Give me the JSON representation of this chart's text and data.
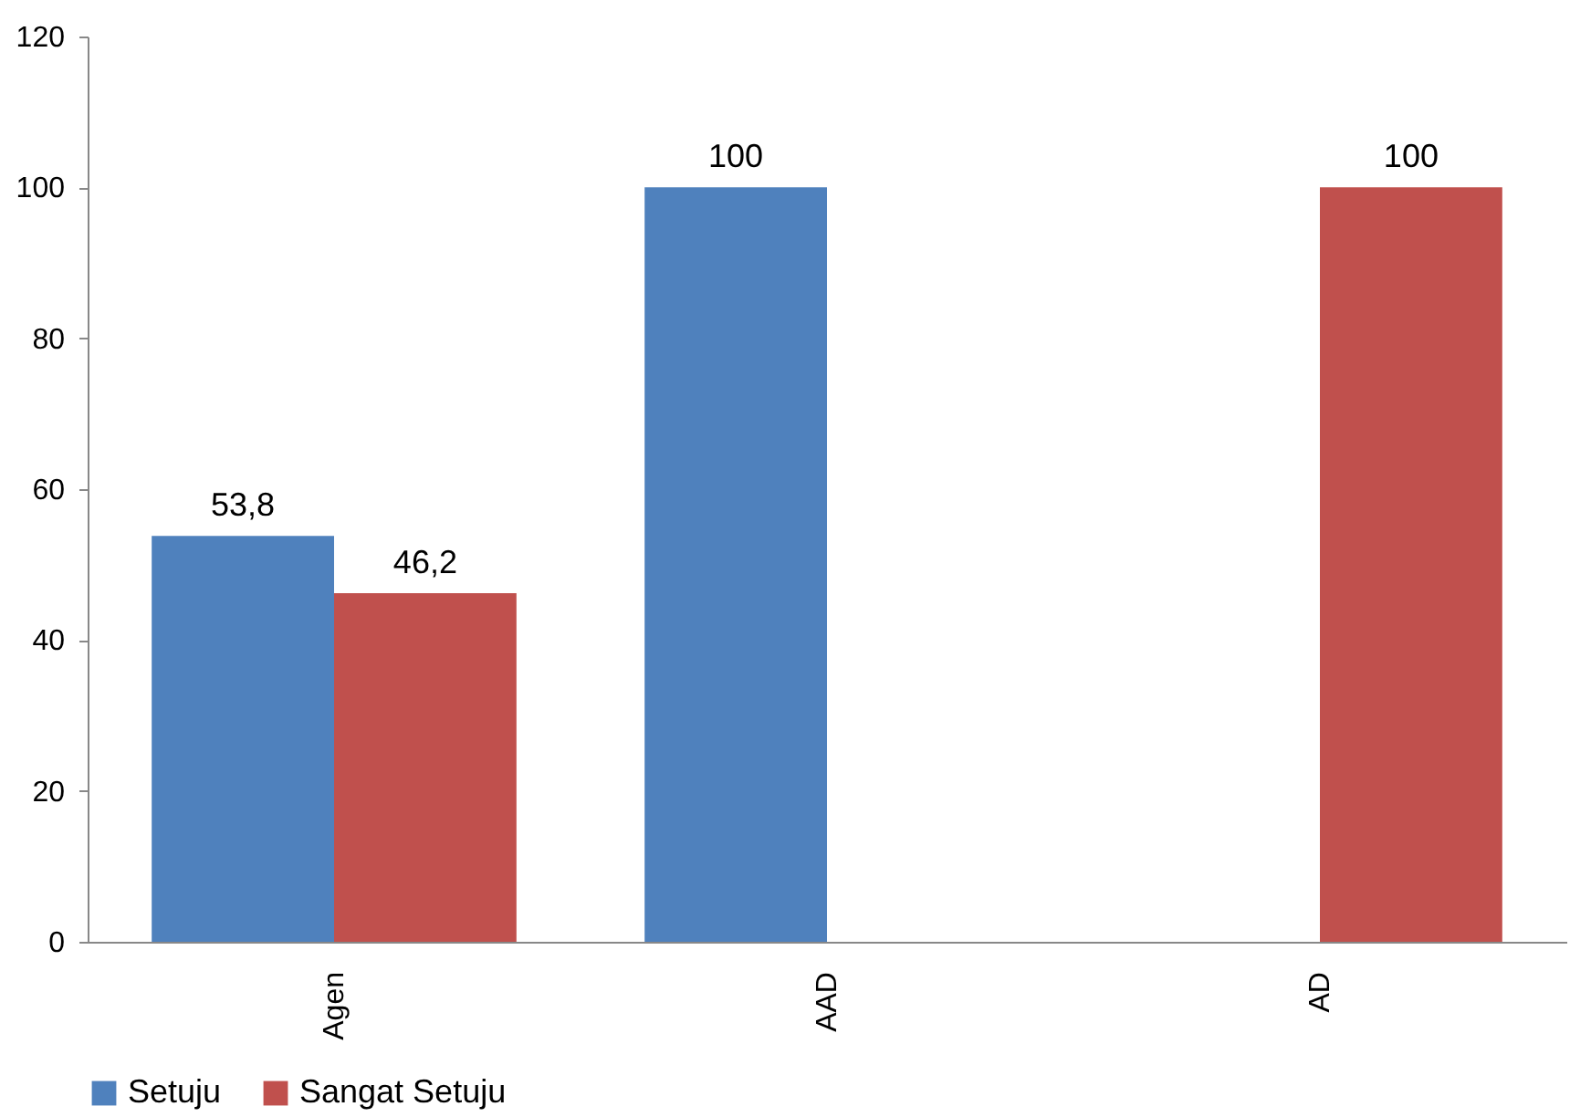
{
  "chart_data": {
    "type": "bar",
    "categories": [
      "Agen",
      "AAD",
      "AD"
    ],
    "series": [
      {
        "name": "Setuju",
        "color": "#4f81bd",
        "values": [
          53.8,
          100,
          null
        ],
        "value_labels": [
          "53,8",
          "100",
          null
        ]
      },
      {
        "name": "Sangat Setuju",
        "color": "#c0504d",
        "values": [
          46.2,
          null,
          100
        ],
        "value_labels": [
          "46,2",
          null,
          "100"
        ]
      }
    ],
    "ylim": [
      0,
      120
    ],
    "yticks": [
      0,
      20,
      40,
      60,
      80,
      100,
      120
    ],
    "grid": false,
    "legend": "bottom"
  }
}
